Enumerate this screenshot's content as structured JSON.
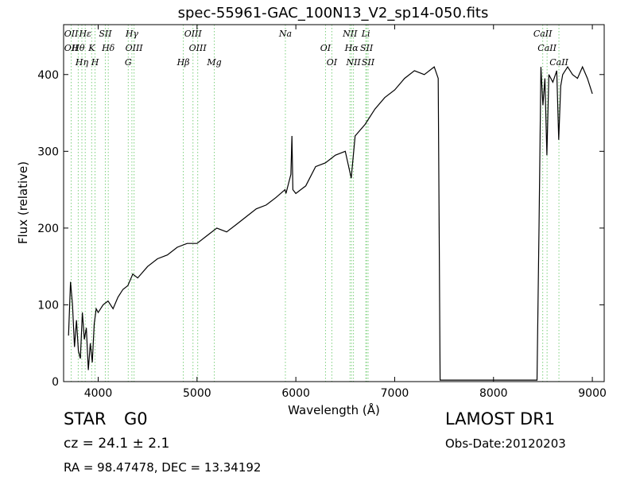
{
  "chart_data": {
    "type": "line",
    "title": "spec-55961-GAC_100N13_V2_sp14-050.fits",
    "xlabel": "Wavelength (Å)",
    "ylabel": "Flux (relative)",
    "xlim": [
      3650,
      9120
    ],
    "ylim": [
      0,
      465
    ],
    "x_ticks": [
      4000,
      5000,
      6000,
      7000,
      8000,
      9000
    ],
    "y_ticks": [
      0,
      100,
      200,
      300,
      400
    ],
    "grid": false,
    "series": [
      {
        "x": [
          3700,
          3720,
          3740,
          3760,
          3780,
          3800,
          3820,
          3840,
          3860,
          3880,
          3900,
          3920,
          3940,
          3960,
          3980,
          4000,
          4050,
          4100,
          4150,
          4200,
          4250,
          4300,
          4350,
          4400,
          4500,
          4600,
          4700,
          4800,
          4900,
          5000,
          5100,
          5200,
          5300,
          5400,
          5500,
          5600,
          5700,
          5800,
          5890,
          5900,
          5950,
          5960,
          5970,
          6000,
          6100,
          6200,
          6300,
          6400,
          6500,
          6560,
          6600,
          6700,
          6800,
          6900,
          7000,
          7100,
          7200,
          7300,
          7400,
          7440,
          7450,
          7460,
          7480,
          8000,
          8440,
          8460,
          8480,
          8500,
          8520,
          8540,
          8560,
          8600,
          8640,
          8660,
          8680,
          8700,
          8750,
          8800,
          8850,
          8900,
          8950,
          9000
        ],
        "y": [
          60,
          130,
          100,
          45,
          80,
          40,
          30,
          90,
          55,
          70,
          15,
          50,
          25,
          75,
          95,
          90,
          100,
          105,
          95,
          110,
          120,
          125,
          140,
          135,
          150,
          160,
          165,
          175,
          180,
          180,
          190,
          200,
          195,
          205,
          215,
          225,
          230,
          240,
          250,
          245,
          270,
          320,
          250,
          245,
          255,
          280,
          285,
          295,
          300,
          265,
          320,
          335,
          355,
          370,
          380,
          395,
          405,
          400,
          410,
          395,
          200,
          2,
          2,
          2,
          2,
          200,
          410,
          360,
          395,
          295,
          400,
          390,
          405,
          315,
          385,
          400,
          410,
          400,
          395,
          410,
          395,
          375
        ]
      }
    ],
    "line_markers": [
      {
        "wavelength": 3727,
        "labels": [
          "OII",
          "OII"
        ]
      },
      {
        "wavelength": 3798,
        "labels": [
          "Hθ"
        ]
      },
      {
        "wavelength": 3835,
        "labels": [
          "Hη"
        ]
      },
      {
        "wavelength": 3869,
        "labels": [
          "Hε"
        ]
      },
      {
        "wavelength": 3934,
        "labels": [
          "K"
        ]
      },
      {
        "wavelength": 3968,
        "labels": [
          "H"
        ]
      },
      {
        "wavelength": 4072,
        "labels": [
          "SII"
        ]
      },
      {
        "wavelength": 4102,
        "labels": [
          "Hδ"
        ]
      },
      {
        "wavelength": 4304,
        "labels": [
          "G"
        ]
      },
      {
        "wavelength": 4341,
        "labels": [
          "Hγ"
        ]
      },
      {
        "wavelength": 4363,
        "labels": [
          "OIII"
        ]
      },
      {
        "wavelength": 4861,
        "labels": [
          "Hβ"
        ]
      },
      {
        "wavelength": 4959,
        "labels": [
          "OIII"
        ]
      },
      {
        "wavelength": 5007,
        "labels": [
          "OIII"
        ]
      },
      {
        "wavelength": 5175,
        "labels": [
          "Mg"
        ]
      },
      {
        "wavelength": 5894,
        "labels": [
          "Na"
        ]
      },
      {
        "wavelength": 6300,
        "labels": [
          "OI"
        ]
      },
      {
        "wavelength": 6364,
        "labels": [
          "OI"
        ]
      },
      {
        "wavelength": 6548,
        "labels": [
          "NII"
        ]
      },
      {
        "wavelength": 6563,
        "labels": [
          "Hα"
        ]
      },
      {
        "wavelength": 6583,
        "labels": [
          "NII"
        ]
      },
      {
        "wavelength": 6708,
        "labels": [
          "Li"
        ]
      },
      {
        "wavelength": 6716,
        "labels": [
          "SII"
        ]
      },
      {
        "wavelength": 6731,
        "labels": [
          "SII"
        ]
      },
      {
        "wavelength": 8498,
        "labels": [
          "CaII"
        ]
      },
      {
        "wavelength": 8542,
        "labels": [
          "CaII"
        ]
      },
      {
        "wavelength": 8662,
        "labels": [
          "CaII"
        ]
      }
    ]
  },
  "info": {
    "object_class": "STAR",
    "subclass": "G0",
    "redshift": "cz = 24.1 ± 2.1",
    "coords": "RA = 98.47478, DEC = 13.34192",
    "survey": "LAMOST DR1",
    "obs_date": "Obs-Date:20120203"
  },
  "colors": {
    "spectrum": "#000000",
    "line_marker": "#7ccf7c",
    "axes": "#000000"
  }
}
